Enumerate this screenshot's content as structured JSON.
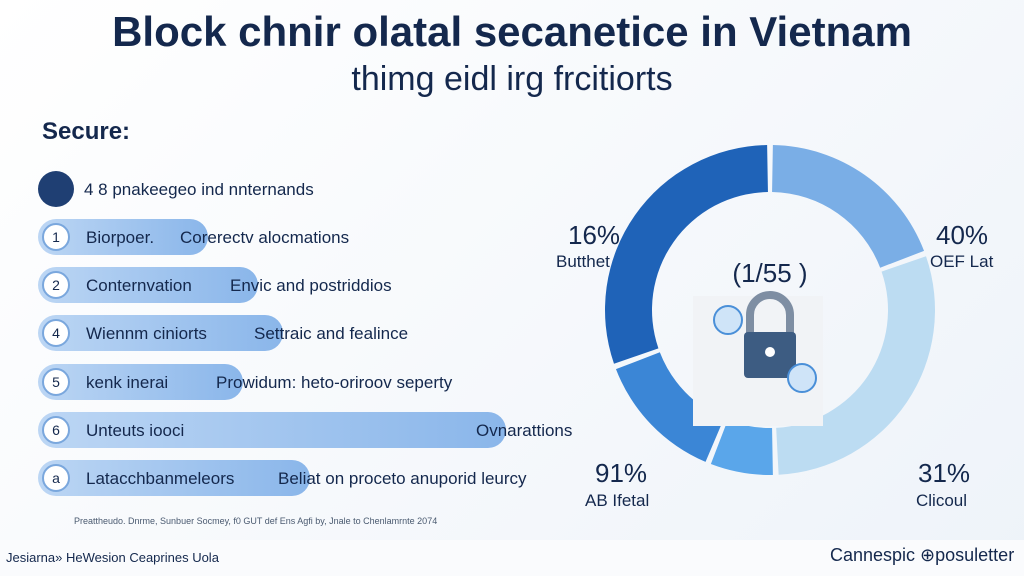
{
  "title": "Block chnir olatal secanetice in Vietnam",
  "subtitle": "thimg eidl irg frcitiorts",
  "section": "Secure:",
  "list": [
    "4  8  pnakeegeo ind nnternands"
  ],
  "rows": [
    {
      "badge": "1",
      "label": "Biorpoer.",
      "description": "Corerectv alocmations"
    },
    {
      "badge": "2",
      "label": "Conternvation",
      "description": "Envic and postriddios"
    },
    {
      "badge": "4",
      "label": "Wiennm ciniorts",
      "description": "Settraic and fealince"
    },
    {
      "badge": "5",
      "label": "kenk inerai",
      "description": "Prowidum: heto-oriroov seperty"
    },
    {
      "badge": "6",
      "label": "Unteuts iooci",
      "description": "Ovnarattions"
    },
    {
      "badge": "a",
      "label": "Latacchbanmeleors",
      "description": "Beliat on proceto anuporid leurcy"
    }
  ],
  "donut": {
    "center": "(1/55 )",
    "labels": [
      {
        "percent": "16%",
        "caption": "Butthet"
      },
      {
        "percent": "40%",
        "caption": "OEF Lat"
      },
      {
        "percent": "91%",
        "caption": "AB Ifetal"
      },
      {
        "percent": "31%",
        "caption": "Clicoul"
      }
    ]
  },
  "footnote": "Preattheudo. Dnrme, Sunbuer Socmey, f0 GUT def Ens Agfi by, Jnale to Chenlamrnte 2074",
  "footer": {
    "left": "Jesiarna» HeWesion Ceaprines Uola",
    "right": "Cannespic ⊕posuletter"
  }
}
